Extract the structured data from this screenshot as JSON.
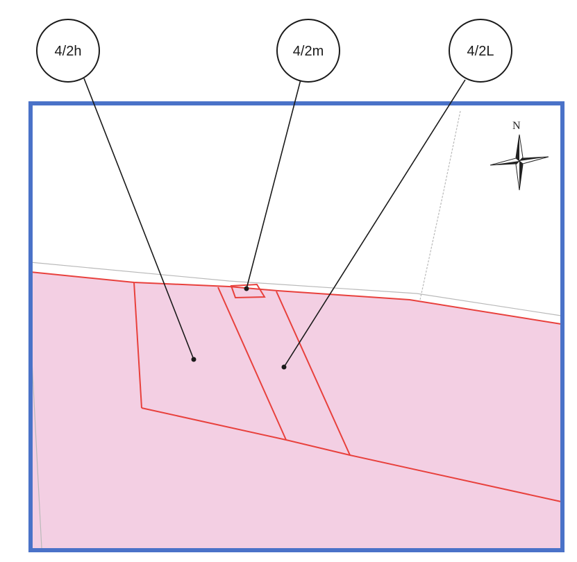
{
  "map": {
    "parcels": [
      {
        "id": "parcel-4-2h",
        "label": "4/2h"
      },
      {
        "id": "parcel-4-2m",
        "label": "4/2m"
      },
      {
        "id": "parcel-4-2l",
        "label": "4/2L"
      }
    ],
    "compass": {
      "north_label": "N"
    },
    "colors": {
      "frame": "#4a72c8",
      "parcel_fill": "#f3cfe3",
      "parcel_outline": "#e8403c",
      "grey_boundary": "#b9b9b9",
      "leader": "#1a1a1a"
    }
  }
}
